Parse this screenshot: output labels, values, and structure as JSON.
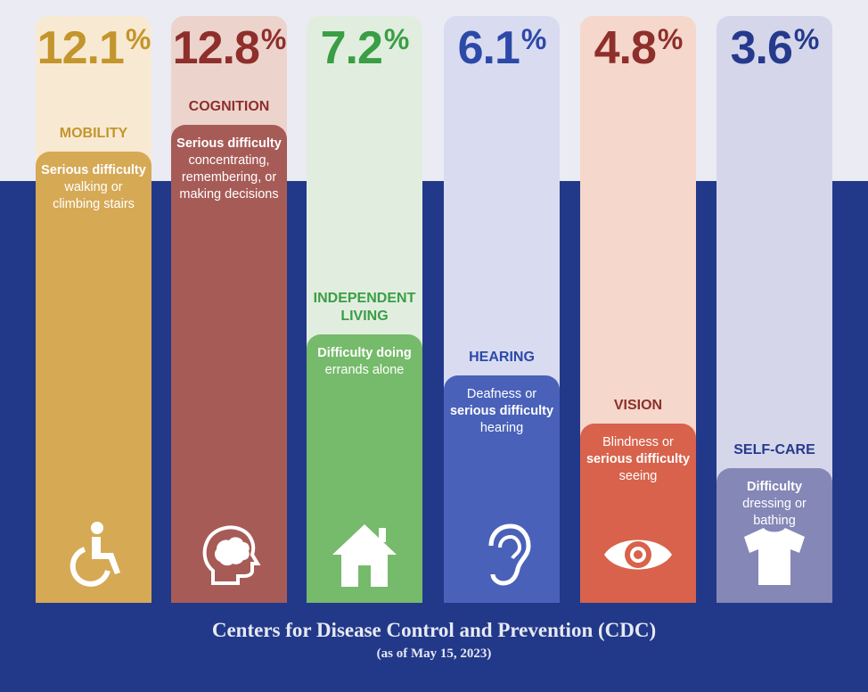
{
  "chart_data": {
    "type": "bar",
    "categories": [
      "MOBILITY",
      "COGNITION",
      "INDEPENDENT LIVING",
      "HEARING",
      "VISION",
      "SELF-CARE"
    ],
    "values": [
      12.1,
      12.8,
      7.2,
      6.1,
      4.8,
      3.6
    ],
    "unit": "%",
    "ylim": [
      0,
      14
    ],
    "grid": false,
    "legend": "none"
  },
  "items": [
    {
      "value": "12.1",
      "symbol": "%",
      "label": "MOBILITY",
      "desc_bold": "Serious difficulty",
      "desc": "walking or climbing stairs",
      "bold_first": true,
      "icon": "wheelchair-icon"
    },
    {
      "value": "12.8",
      "symbol": "%",
      "label": "COGNITION",
      "desc_bold": "Serious difficulty",
      "desc": "concentrating, remembering, or making decisions",
      "bold_first": true,
      "icon": "brain-head-icon"
    },
    {
      "value": "7.2",
      "symbol": "%",
      "label": "INDEPENDENT LIVING",
      "desc_bold": "Difficulty doing",
      "desc": "errands alone",
      "bold_first": true,
      "icon": "house-icon"
    },
    {
      "value": "6.1",
      "symbol": "%",
      "label": "HEARING",
      "desc_bold": "serious difficulty",
      "desc_pre": "Deafness or",
      "desc": "hearing",
      "bold_first": false,
      "icon": "ear-icon"
    },
    {
      "value": "4.8",
      "symbol": "%",
      "label": "VISION",
      "desc_bold": "serious difficulty",
      "desc_pre": "Blindness or",
      "desc": "seeing",
      "bold_first": false,
      "icon": "eye-icon"
    },
    {
      "value": "3.6",
      "symbol": "%",
      "label": "SELF-CARE",
      "desc_bold": "Difficulty",
      "desc": "dressing or bathing",
      "bold_first": true,
      "icon": "shirt-icon"
    }
  ],
  "colors": {
    "band": "#22398a",
    "columns": [
      {
        "accent": "#c3952c",
        "fill": "#d6a955",
        "bg": "#f8ead2"
      },
      {
        "accent": "#8e2f2c",
        "fill": "#a75b57",
        "bg": "#ecd4cd"
      },
      {
        "accent": "#3a9e44",
        "fill": "#76bb6b",
        "bg": "#e1eedf"
      },
      {
        "accent": "#2d49a8",
        "fill": "#4961b9",
        "bg": "#d9dcf0"
      },
      {
        "accent": "#8e2f2c",
        "fill": "#d8624b",
        "bg": "#f5d7cb"
      },
      {
        "accent": "#253a8c",
        "fill": "#8587b7",
        "bg": "#d5d6ea"
      }
    ]
  },
  "footer": {
    "source": "Centers for Disease Control and Prevention (CDC)",
    "as_of": "(as of May 15, 2023)"
  }
}
